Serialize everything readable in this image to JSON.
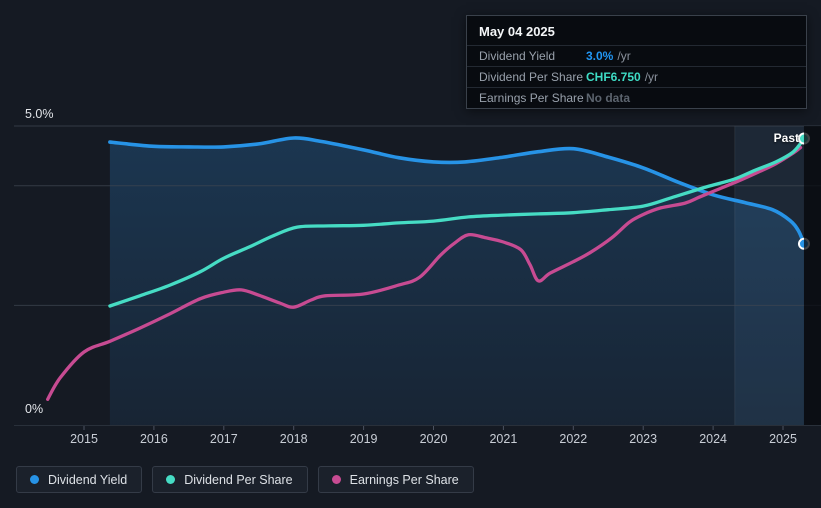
{
  "header_tooltip": {
    "date": "May 04 2025",
    "rows": [
      {
        "label": "Dividend Yield",
        "value": "3.0%",
        "suffix": "/yr",
        "value_color": "#2196F3"
      },
      {
        "label": "Dividend Per Share",
        "value": "CHF6.750",
        "suffix": "/yr",
        "value_color": "#3EDCC5"
      },
      {
        "label": "Earnings Per Share",
        "value": "No data",
        "suffix": "",
        "value_color": "#5C646E"
      }
    ]
  },
  "axis": {
    "y_top": "5.0%",
    "y_bottom": "0%",
    "past_label": "Past"
  },
  "legend": {
    "items": [
      {
        "label": "Dividend Yield",
        "color": "#2793E6"
      },
      {
        "label": "Dividend Per Share",
        "color": "#46DCC4"
      },
      {
        "label": "Earnings Per Share",
        "color": "#C74B92"
      }
    ]
  },
  "colors": {
    "background": "#151A23",
    "grid": "#3E4552",
    "tick": "#4B5260",
    "year_label": "#C9CED6",
    "area_top": "rgba(38,100,155,0.38)",
    "area_bottom": "rgba(38,100,155,0.14)",
    "past_band": "rgba(110,165,225,0.10)",
    "future_strip": "rgba(9,12,17,0.78)",
    "marker_ring": "#FFFFFF"
  },
  "chart_data": {
    "type": "line",
    "x_ticks": [
      "2015",
      "2016",
      "2017",
      "2018",
      "2019",
      "2020",
      "2021",
      "2022",
      "2023",
      "2024",
      "2025"
    ],
    "x_tick_years": [
      2015,
      2016,
      2017,
      2018,
      2019,
      2020,
      2021,
      2022,
      2023,
      2024,
      2025
    ],
    "x_range": [
      2014.0,
      2025.55
    ],
    "y_axis": {
      "visible_unit": "%",
      "min": 0,
      "max": 5,
      "gridline_values": [
        5,
        4,
        2
      ],
      "baseline_value": 0
    },
    "hover_readout": {
      "date": "May 04 2025",
      "dividend_yield_pct": 3.0,
      "dividend_per_share": "CHF6.750 /yr",
      "earnings_per_share": "No data"
    },
    "past_band": {
      "from": 2024.31,
      "to": 2025.3
    },
    "future_strip": {
      "from": 2025.3,
      "to": 2025.55
    },
    "series": [
      {
        "name": "Dividend Yield",
        "unit": "%",
        "color": "#2793E6",
        "stroke_width": 3.6,
        "area_fill": true,
        "end_marker": true,
        "points": [
          [
            2015.37,
            4.73
          ],
          [
            2016.0,
            4.66
          ],
          [
            2016.5,
            4.65
          ],
          [
            2017.0,
            4.65
          ],
          [
            2017.5,
            4.7
          ],
          [
            2018.0,
            4.8
          ],
          [
            2018.4,
            4.74
          ],
          [
            2019.0,
            4.6
          ],
          [
            2019.5,
            4.47
          ],
          [
            2020.0,
            4.4
          ],
          [
            2020.45,
            4.4
          ],
          [
            2021.0,
            4.48
          ],
          [
            2021.5,
            4.57
          ],
          [
            2022.0,
            4.62
          ],
          [
            2022.5,
            4.48
          ],
          [
            2023.0,
            4.3
          ],
          [
            2023.5,
            4.06
          ],
          [
            2024.0,
            3.85
          ],
          [
            2024.45,
            3.72
          ],
          [
            2024.85,
            3.6
          ],
          [
            2025.1,
            3.42
          ],
          [
            2025.22,
            3.25
          ],
          [
            2025.3,
            3.03
          ]
        ]
      },
      {
        "name": "Dividend Per Share",
        "unit": "plot-scale (CHF axis not shown)",
        "color": "#46DCC4",
        "stroke_width": 3.3,
        "area_fill": false,
        "end_marker": true,
        "points": [
          [
            2015.37,
            1.99
          ],
          [
            2015.8,
            2.16
          ],
          [
            2016.23,
            2.34
          ],
          [
            2016.66,
            2.56
          ],
          [
            2017.0,
            2.79
          ],
          [
            2017.37,
            2.98
          ],
          [
            2017.7,
            3.16
          ],
          [
            2018.05,
            3.31
          ],
          [
            2018.5,
            3.33
          ],
          [
            2019.0,
            3.34
          ],
          [
            2019.5,
            3.38
          ],
          [
            2020.0,
            3.41
          ],
          [
            2020.5,
            3.48
          ],
          [
            2021.0,
            3.51
          ],
          [
            2021.5,
            3.53
          ],
          [
            2022.0,
            3.55
          ],
          [
            2022.5,
            3.6
          ],
          [
            2023.0,
            3.66
          ],
          [
            2023.4,
            3.8
          ],
          [
            2023.9,
            3.98
          ],
          [
            2024.3,
            4.11
          ],
          [
            2024.6,
            4.26
          ],
          [
            2024.9,
            4.4
          ],
          [
            2025.15,
            4.57
          ],
          [
            2025.3,
            4.79
          ]
        ]
      },
      {
        "name": "Earnings Per Share",
        "unit": "plot-scale (CHF axis not shown)",
        "color": "#C74B92",
        "stroke_width": 3.3,
        "area_fill": false,
        "end_marker": false,
        "points": [
          [
            2014.48,
            0.43
          ],
          [
            2014.66,
            0.79
          ],
          [
            2015.0,
            1.22
          ],
          [
            2015.37,
            1.4
          ],
          [
            2015.8,
            1.62
          ],
          [
            2016.23,
            1.86
          ],
          [
            2016.66,
            2.11
          ],
          [
            2017.0,
            2.22
          ],
          [
            2017.25,
            2.26
          ],
          [
            2017.5,
            2.17
          ],
          [
            2017.8,
            2.04
          ],
          [
            2018.0,
            1.97
          ],
          [
            2018.25,
            2.09
          ],
          [
            2018.45,
            2.16
          ],
          [
            2019.0,
            2.19
          ],
          [
            2019.5,
            2.34
          ],
          [
            2019.8,
            2.47
          ],
          [
            2020.1,
            2.84
          ],
          [
            2020.3,
            3.04
          ],
          [
            2020.5,
            3.18
          ],
          [
            2020.75,
            3.13
          ],
          [
            2021.0,
            3.06
          ],
          [
            2021.25,
            2.93
          ],
          [
            2021.38,
            2.68
          ],
          [
            2021.5,
            2.41
          ],
          [
            2021.67,
            2.54
          ],
          [
            2022.0,
            2.73
          ],
          [
            2022.25,
            2.89
          ],
          [
            2022.55,
            3.13
          ],
          [
            2022.8,
            3.39
          ],
          [
            2023.0,
            3.52
          ],
          [
            2023.25,
            3.63
          ],
          [
            2023.6,
            3.71
          ],
          [
            2023.8,
            3.81
          ],
          [
            2024.05,
            3.93
          ],
          [
            2024.4,
            4.1
          ],
          [
            2024.65,
            4.23
          ],
          [
            2024.9,
            4.37
          ],
          [
            2025.15,
            4.55
          ],
          [
            2025.25,
            4.64
          ]
        ]
      }
    ]
  }
}
